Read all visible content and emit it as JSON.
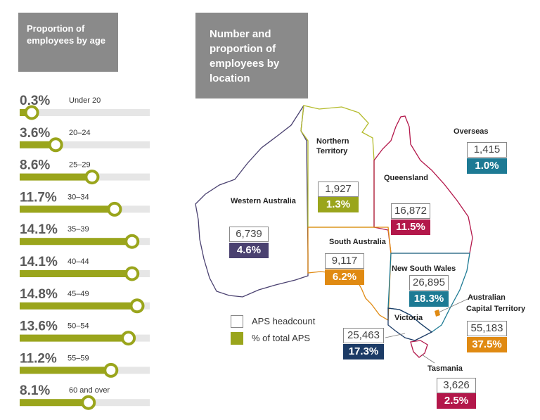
{
  "age_panel": {
    "title": "Proportion of employees by age"
  },
  "location_panel": {
    "title": "Number and proportion of employees by location"
  },
  "chart_data": [
    {
      "type": "bar",
      "title": "Proportion of employees by age",
      "categories": [
        "Under 20",
        "20–24",
        "25–29",
        "30–34",
        "35–39",
        "40–44",
        "45–49",
        "50–54",
        "55–59",
        "60 and over"
      ],
      "values": [
        0.3,
        3.6,
        8.6,
        11.7,
        14.1,
        14.1,
        14.8,
        13.6,
        11.2,
        8.1
      ],
      "labels": [
        "0.3%",
        "3.6%",
        "8.6%",
        "11.7%",
        "14.1%",
        "14.1%",
        "14.8%",
        "13.6%",
        "11.2%",
        "8.1%"
      ],
      "unit": "%",
      "colors": {
        "bar": "#9aa51c",
        "track": "#e6e6e6"
      }
    },
    {
      "type": "table",
      "title": "Number and proportion of employees by location",
      "regions": [
        {
          "key": "wa",
          "name": "Western Australia",
          "headcount": "6,739",
          "percent": "4.6%",
          "color": "#4a4170"
        },
        {
          "key": "nt",
          "name": "Northern Territory",
          "headcount": "1,927",
          "percent": "1.3%",
          "color": "#9aa51c"
        },
        {
          "key": "qld",
          "name": "Queensland",
          "headcount": "16,872",
          "percent": "11.5%",
          "color": "#b3174a"
        },
        {
          "key": "sa",
          "name": "South Australia",
          "headcount": "9,117",
          "percent": "6.2%",
          "color": "#e08a12"
        },
        {
          "key": "nsw",
          "name": "New South Wales",
          "headcount": "26,895",
          "percent": "18.3%",
          "color": "#1d7a94"
        },
        {
          "key": "act",
          "name": "Australian Capital Territory",
          "headcount": "55,183",
          "percent": "37.5%",
          "color": "#e08a12"
        },
        {
          "key": "vic",
          "name": "Victoria",
          "headcount": "25,463",
          "percent": "17.3%",
          "color": "#1c3b66"
        },
        {
          "key": "tas",
          "name": "Tasmania",
          "headcount": "3,626",
          "percent": "2.5%",
          "color": "#b3174a"
        },
        {
          "key": "os",
          "name": "Overseas",
          "headcount": "1,415",
          "percent": "1.0%",
          "color": "#1d7a94"
        }
      ],
      "legend": {
        "headcount_label": "APS headcount",
        "percent_label": "% of total APS",
        "percent_color": "#9aa51c"
      }
    }
  ]
}
